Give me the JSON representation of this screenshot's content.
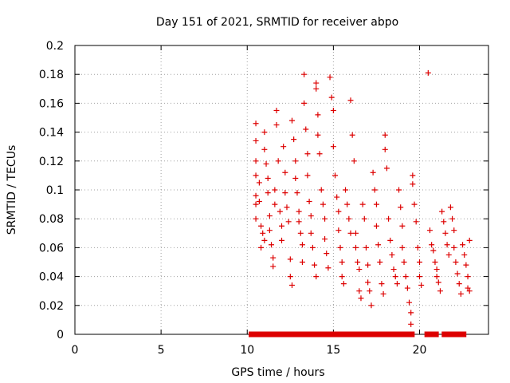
{
  "chart_data": {
    "type": "scatter",
    "title": "Day 151 of 2021, SRMTID for receiver abpo",
    "xlabel": "GPS time / hours",
    "ylabel": "SRMTID / TECUs",
    "xlim": [
      0,
      24
    ],
    "ylim": [
      0,
      0.2
    ],
    "xticks": [
      0,
      5,
      10,
      15,
      20
    ],
    "yticks": [
      0,
      0.02,
      0.04,
      0.06,
      0.08,
      0.1,
      0.12,
      0.14,
      0.16,
      0.18,
      0.2
    ],
    "xtick_labels": [
      "0",
      "5",
      "10",
      "15",
      "20"
    ],
    "ytick_labels": [
      "0",
      "0.02",
      "0.04",
      "0.06",
      "0.08",
      "0.1",
      "0.12",
      "0.14",
      "0.16",
      "0.18",
      "0.2"
    ],
    "grid": true,
    "series": [
      {
        "name": "SRMTID",
        "marker": "plus",
        "color": "#dd0000",
        "points": [
          [
            10.5,
            0.146
          ],
          [
            10.5,
            0.134
          ],
          [
            10.5,
            0.12
          ],
          [
            10.5,
            0.11
          ],
          [
            10.5,
            0.096
          ],
          [
            10.5,
            0.09
          ],
          [
            10.5,
            0.08
          ],
          [
            10.7,
            0.105
          ],
          [
            10.7,
            0.092
          ],
          [
            10.8,
            0.075
          ],
          [
            10.8,
            0.06
          ],
          [
            10.9,
            0.07
          ],
          [
            11.0,
            0.065
          ],
          [
            11.0,
            0.14
          ],
          [
            11.0,
            0.128
          ],
          [
            11.1,
            0.118
          ],
          [
            11.2,
            0.108
          ],
          [
            11.2,
            0.098
          ],
          [
            11.3,
            0.082
          ],
          [
            11.3,
            0.072
          ],
          [
            11.4,
            0.062
          ],
          [
            11.5,
            0.053
          ],
          [
            11.5,
            0.047
          ],
          [
            11.6,
            0.09
          ],
          [
            11.6,
            0.1
          ],
          [
            11.7,
            0.155
          ],
          [
            11.7,
            0.145
          ],
          [
            11.8,
            0.12
          ],
          [
            11.9,
            0.085
          ],
          [
            12.0,
            0.075
          ],
          [
            12.0,
            0.065
          ],
          [
            12.1,
            0.13
          ],
          [
            12.2,
            0.112
          ],
          [
            12.2,
            0.098
          ],
          [
            12.3,
            0.088
          ],
          [
            12.4,
            0.078
          ],
          [
            12.5,
            0.052
          ],
          [
            12.5,
            0.04
          ],
          [
            12.6,
            0.034
          ],
          [
            12.6,
            0.148
          ],
          [
            12.7,
            0.135
          ],
          [
            12.8,
            0.12
          ],
          [
            12.8,
            0.108
          ],
          [
            12.9,
            0.098
          ],
          [
            13.0,
            0.085
          ],
          [
            13.0,
            0.078
          ],
          [
            13.1,
            0.07
          ],
          [
            13.2,
            0.062
          ],
          [
            13.2,
            0.05
          ],
          [
            13.3,
            0.18
          ],
          [
            13.3,
            0.16
          ],
          [
            13.4,
            0.142
          ],
          [
            13.5,
            0.125
          ],
          [
            13.5,
            0.11
          ],
          [
            13.6,
            0.092
          ],
          [
            13.7,
            0.082
          ],
          [
            13.7,
            0.07
          ],
          [
            13.8,
            0.06
          ],
          [
            13.9,
            0.048
          ],
          [
            14.0,
            0.04
          ],
          [
            14.0,
            0.174
          ],
          [
            14.0,
            0.17
          ],
          [
            14.1,
            0.152
          ],
          [
            14.1,
            0.138
          ],
          [
            14.2,
            0.125
          ],
          [
            14.3,
            0.1
          ],
          [
            14.4,
            0.09
          ],
          [
            14.5,
            0.08
          ],
          [
            14.5,
            0.066
          ],
          [
            14.6,
            0.056
          ],
          [
            14.7,
            0.046
          ],
          [
            14.8,
            0.178
          ],
          [
            14.9,
            0.164
          ],
          [
            15.0,
            0.155
          ],
          [
            15.0,
            0.13
          ],
          [
            15.1,
            0.11
          ],
          [
            15.2,
            0.095
          ],
          [
            15.3,
            0.085
          ],
          [
            15.3,
            0.072
          ],
          [
            15.4,
            0.06
          ],
          [
            15.5,
            0.05
          ],
          [
            15.5,
            0.04
          ],
          [
            15.6,
            0.035
          ],
          [
            15.7,
            0.1
          ],
          [
            15.8,
            0.09
          ],
          [
            15.9,
            0.08
          ],
          [
            16.0,
            0.07
          ],
          [
            16.0,
            0.162
          ],
          [
            16.1,
            0.138
          ],
          [
            16.2,
            0.12
          ],
          [
            16.3,
            0.07
          ],
          [
            16.3,
            0.06
          ],
          [
            16.4,
            0.05
          ],
          [
            16.5,
            0.045
          ],
          [
            16.5,
            0.03
          ],
          [
            16.6,
            0.025
          ],
          [
            16.7,
            0.09
          ],
          [
            16.8,
            0.08
          ],
          [
            16.9,
            0.06
          ],
          [
            17.0,
            0.048
          ],
          [
            17.0,
            0.036
          ],
          [
            17.1,
            0.03
          ],
          [
            17.2,
            0.02
          ],
          [
            17.3,
            0.112
          ],
          [
            17.4,
            0.1
          ],
          [
            17.5,
            0.09
          ],
          [
            17.5,
            0.075
          ],
          [
            17.6,
            0.062
          ],
          [
            17.7,
            0.05
          ],
          [
            17.8,
            0.035
          ],
          [
            17.9,
            0.028
          ],
          [
            18.0,
            0.138
          ],
          [
            18.0,
            0.128
          ],
          [
            18.1,
            0.115
          ],
          [
            18.2,
            0.08
          ],
          [
            18.3,
            0.065
          ],
          [
            18.4,
            0.055
          ],
          [
            18.5,
            0.045
          ],
          [
            18.6,
            0.04
          ],
          [
            18.7,
            0.035
          ],
          [
            18.8,
            0.1
          ],
          [
            18.9,
            0.088
          ],
          [
            19.0,
            0.075
          ],
          [
            19.0,
            0.06
          ],
          [
            19.1,
            0.05
          ],
          [
            19.2,
            0.04
          ],
          [
            19.3,
            0.032
          ],
          [
            19.4,
            0.022
          ],
          [
            19.5,
            0.015
          ],
          [
            19.5,
            0.007
          ],
          [
            19.6,
            0.11
          ],
          [
            19.6,
            0.104
          ],
          [
            19.7,
            0.09
          ],
          [
            19.8,
            0.078
          ],
          [
            19.9,
            0.06
          ],
          [
            20.0,
            0.05
          ],
          [
            20.0,
            0.04
          ],
          [
            20.1,
            0.034
          ],
          [
            20.5,
            0.181
          ],
          [
            20.6,
            0.072
          ],
          [
            20.7,
            0.062
          ],
          [
            20.8,
            0.058
          ],
          [
            20.9,
            0.05
          ],
          [
            21.0,
            0.045
          ],
          [
            21.0,
            0.04
          ],
          [
            21.1,
            0.036
          ],
          [
            21.2,
            0.03
          ],
          [
            21.3,
            0.085
          ],
          [
            21.4,
            0.078
          ],
          [
            21.5,
            0.07
          ],
          [
            21.6,
            0.062
          ],
          [
            21.7,
            0.055
          ],
          [
            21.8,
            0.088
          ],
          [
            21.9,
            0.08
          ],
          [
            22.0,
            0.072
          ],
          [
            22.0,
            0.06
          ],
          [
            22.1,
            0.05
          ],
          [
            22.2,
            0.042
          ],
          [
            22.3,
            0.035
          ],
          [
            22.4,
            0.028
          ],
          [
            22.5,
            0.062
          ],
          [
            22.6,
            0.055
          ],
          [
            22.7,
            0.048
          ],
          [
            22.8,
            0.04
          ],
          [
            22.8,
            0.032
          ],
          [
            22.9,
            0.065
          ],
          [
            22.9,
            0.03
          ]
        ]
      },
      {
        "name": "baseline",
        "marker": "square",
        "color": "#dd0000",
        "points": [
          [
            10.2,
            0
          ],
          [
            10.4,
            0
          ],
          [
            10.6,
            0
          ],
          [
            10.8,
            0
          ],
          [
            11.0,
            0
          ],
          [
            11.2,
            0
          ],
          [
            11.4,
            0
          ],
          [
            11.6,
            0
          ],
          [
            11.8,
            0
          ],
          [
            12.0,
            0
          ],
          [
            12.2,
            0
          ],
          [
            12.4,
            0
          ],
          [
            12.6,
            0
          ],
          [
            12.8,
            0
          ],
          [
            13.0,
            0
          ],
          [
            13.2,
            0
          ],
          [
            13.4,
            0
          ],
          [
            13.6,
            0
          ],
          [
            13.8,
            0
          ],
          [
            14.0,
            0
          ],
          [
            14.2,
            0
          ],
          [
            14.4,
            0
          ],
          [
            14.6,
            0
          ],
          [
            14.8,
            0
          ],
          [
            15.0,
            0
          ],
          [
            15.2,
            0
          ],
          [
            15.4,
            0
          ],
          [
            15.6,
            0
          ],
          [
            15.8,
            0
          ],
          [
            16.0,
            0
          ],
          [
            16.2,
            0
          ],
          [
            16.4,
            0
          ],
          [
            16.6,
            0
          ],
          [
            16.8,
            0
          ],
          [
            17.0,
            0
          ],
          [
            17.2,
            0
          ],
          [
            17.4,
            0
          ],
          [
            17.6,
            0
          ],
          [
            17.8,
            0
          ],
          [
            18.0,
            0
          ],
          [
            18.2,
            0
          ],
          [
            18.4,
            0
          ],
          [
            18.6,
            0
          ],
          [
            18.8,
            0
          ],
          [
            19.0,
            0
          ],
          [
            19.2,
            0
          ],
          [
            19.4,
            0
          ],
          [
            19.6,
            0
          ],
          [
            20.4,
            0
          ],
          [
            20.6,
            0
          ],
          [
            20.8,
            0
          ],
          [
            21.0,
            0
          ],
          [
            21.4,
            0
          ],
          [
            21.6,
            0
          ],
          [
            21.8,
            0
          ],
          [
            22.0,
            0
          ],
          [
            22.2,
            0
          ],
          [
            22.4,
            0
          ],
          [
            22.6,
            0
          ]
        ]
      }
    ]
  }
}
